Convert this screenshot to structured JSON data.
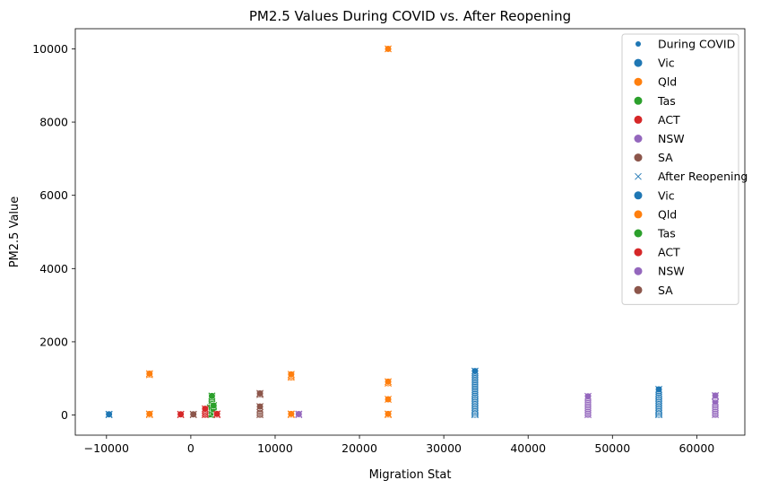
{
  "chart_data": {
    "type": "scatter",
    "title": "PM2.5 Values During COVID vs. After Reopening",
    "xlabel": "Migration Stat",
    "ylabel": "PM2.5 Value",
    "xlim": [
      -13700,
      65700
    ],
    "ylim": [
      -550,
      10550
    ],
    "x_ticks": [
      -10000,
      0,
      10000,
      20000,
      30000,
      40000,
      50000,
      60000
    ],
    "x_tick_labels": [
      "−10000",
      "0",
      "10000",
      "20000",
      "30000",
      "40000",
      "50000",
      "60000"
    ],
    "y_ticks": [
      0,
      2000,
      4000,
      6000,
      8000,
      10000
    ],
    "y_tick_labels": [
      "0",
      "2000",
      "4000",
      "6000",
      "8000",
      "10000"
    ],
    "grid": false,
    "legend_position": "top-right",
    "colors": {
      "Vic": "#1f77b4",
      "Qld": "#ff7f0e",
      "Tas": "#2ca02c",
      "ACT": "#d62728",
      "NSW": "#9467bd",
      "SA": "#8c564b",
      "header": "#1f77b4"
    },
    "legend": [
      {
        "label": "During COVID",
        "marker": "small-dot",
        "color": "#1f77b4"
      },
      {
        "label": "Vic",
        "marker": "dot",
        "color": "#1f77b4"
      },
      {
        "label": "Qld",
        "marker": "dot",
        "color": "#ff7f0e"
      },
      {
        "label": "Tas",
        "marker": "dot",
        "color": "#2ca02c"
      },
      {
        "label": "ACT",
        "marker": "dot",
        "color": "#d62728"
      },
      {
        "label": "NSW",
        "marker": "dot",
        "color": "#9467bd"
      },
      {
        "label": "SA",
        "marker": "dot",
        "color": "#8c564b"
      },
      {
        "label": "After Reopening",
        "marker": "x",
        "color": "#1f77b4"
      },
      {
        "label": "Vic",
        "marker": "dot",
        "color": "#1f77b4"
      },
      {
        "label": "Qld",
        "marker": "dot",
        "color": "#ff7f0e"
      },
      {
        "label": "Tas",
        "marker": "dot",
        "color": "#2ca02c"
      },
      {
        "label": "ACT",
        "marker": "dot",
        "color": "#d62728"
      },
      {
        "label": "NSW",
        "marker": "dot",
        "color": "#9467bd"
      },
      {
        "label": "SA",
        "marker": "dot",
        "color": "#8c564b"
      }
    ],
    "series": [
      {
        "state": "Vic",
        "points": [
          [
            -9700,
            10
          ],
          [
            -9700,
            20
          ],
          [
            33700,
            10
          ],
          [
            33700,
            40
          ],
          [
            33700,
            70
          ],
          [
            33700,
            100
          ],
          [
            33700,
            130
          ],
          [
            33700,
            160
          ],
          [
            33700,
            200
          ],
          [
            33700,
            240
          ],
          [
            33700,
            280
          ],
          [
            33700,
            320
          ],
          [
            33700,
            360
          ],
          [
            33700,
            400
          ],
          [
            33700,
            440
          ],
          [
            33700,
            480
          ],
          [
            33700,
            520
          ],
          [
            33700,
            560
          ],
          [
            33700,
            600
          ],
          [
            33700,
            650
          ],
          [
            33700,
            700
          ],
          [
            33700,
            750
          ],
          [
            33700,
            800
          ],
          [
            33700,
            850
          ],
          [
            33700,
            900
          ],
          [
            33700,
            950
          ],
          [
            33700,
            1000
          ],
          [
            33700,
            1050
          ],
          [
            33700,
            1100
          ],
          [
            33700,
            1150
          ],
          [
            33700,
            1200
          ],
          [
            55500,
            10
          ],
          [
            55500,
            40
          ],
          [
            55500,
            70
          ],
          [
            55500,
            100
          ],
          [
            55500,
            130
          ],
          [
            55500,
            160
          ],
          [
            55500,
            200
          ],
          [
            55500,
            240
          ],
          [
            55500,
            280
          ],
          [
            55500,
            320
          ],
          [
            55500,
            360
          ],
          [
            55500,
            400
          ],
          [
            55500,
            440
          ],
          [
            55500,
            480
          ],
          [
            55500,
            520
          ],
          [
            55500,
            560
          ],
          [
            55500,
            600
          ],
          [
            55500,
            650
          ],
          [
            55500,
            700
          ]
        ]
      },
      {
        "state": "Qld",
        "points": [
          [
            -4900,
            10
          ],
          [
            -4900,
            30
          ],
          [
            -4900,
            1100
          ],
          [
            -4900,
            1130
          ],
          [
            11900,
            10
          ],
          [
            11900,
            30
          ],
          [
            11900,
            1030
          ],
          [
            11900,
            1070
          ],
          [
            11900,
            1110
          ],
          [
            23400,
            10
          ],
          [
            23400,
            30
          ],
          [
            23400,
            430
          ],
          [
            23400,
            870
          ],
          [
            23400,
            910
          ],
          [
            23400,
            10000
          ]
        ]
      },
      {
        "state": "Tas",
        "points": [
          [
            2500,
            10
          ],
          [
            2500,
            40
          ],
          [
            2500,
            70
          ],
          [
            2500,
            100
          ],
          [
            2500,
            130
          ],
          [
            2500,
            160
          ],
          [
            2500,
            200
          ],
          [
            2500,
            240
          ],
          [
            2500,
            280
          ],
          [
            2500,
            320
          ],
          [
            2500,
            360
          ],
          [
            2500,
            400
          ],
          [
            2500,
            440
          ],
          [
            2500,
            480
          ],
          [
            2500,
            520
          ],
          [
            2300,
            20
          ],
          [
            2300,
            100
          ],
          [
            2300,
            200
          ],
          [
            2700,
            60
          ],
          [
            2700,
            150
          ],
          [
            2700,
            260
          ]
        ]
      },
      {
        "state": "ACT",
        "points": [
          [
            -1200,
            10
          ],
          [
            -1200,
            20
          ],
          [
            1700,
            10
          ],
          [
            1700,
            60
          ],
          [
            1700,
            120
          ],
          [
            1700,
            170
          ],
          [
            3100,
            10
          ],
          [
            3100,
            30
          ]
        ]
      },
      {
        "state": "NSW",
        "points": [
          [
            12800,
            10
          ],
          [
            12800,
            25
          ],
          [
            47100,
            10
          ],
          [
            47100,
            60
          ],
          [
            47100,
            110
          ],
          [
            47100,
            160
          ],
          [
            47100,
            210
          ],
          [
            47100,
            260
          ],
          [
            47100,
            310
          ],
          [
            47100,
            360
          ],
          [
            47100,
            410
          ],
          [
            47100,
            460
          ],
          [
            47100,
            510
          ],
          [
            62200,
            10
          ],
          [
            62200,
            60
          ],
          [
            62200,
            110
          ],
          [
            62200,
            160
          ],
          [
            62200,
            210
          ],
          [
            62200,
            260
          ],
          [
            62200,
            310
          ],
          [
            62200,
            360
          ],
          [
            62200,
            500
          ],
          [
            62200,
            530
          ]
        ]
      },
      {
        "state": "SA",
        "points": [
          [
            300,
            10
          ],
          [
            300,
            20
          ],
          [
            8200,
            10
          ],
          [
            8200,
            60
          ],
          [
            8200,
            110
          ],
          [
            8200,
            160
          ],
          [
            8200,
            230
          ],
          [
            8200,
            560
          ],
          [
            8200,
            590
          ]
        ]
      }
    ]
  }
}
